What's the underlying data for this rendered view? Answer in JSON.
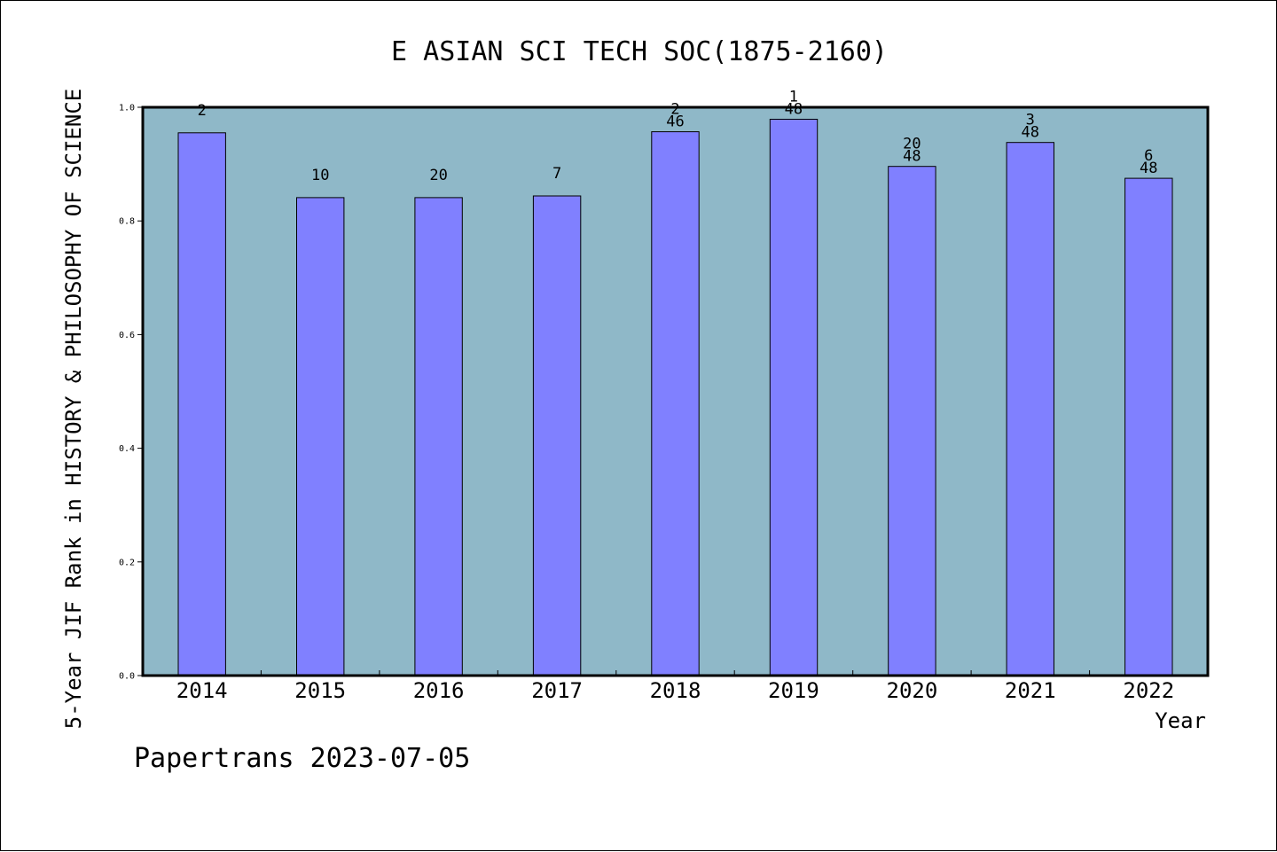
{
  "chart_data": {
    "type": "bar",
    "title": "E ASIAN SCI TECH SOC(1875-2160)",
    "xlabel": "Year",
    "ylabel": "5-Year JIF Rank in HISTORY & PHILOSOPHY OF SCIENCE",
    "footer": "Papertrans 2023-07-05",
    "categories": [
      "2014",
      "2015",
      "2016",
      "2017",
      "2018",
      "2019",
      "2020",
      "2021",
      "2022"
    ],
    "values": [
      0.955,
      0.841,
      0.841,
      0.844,
      0.957,
      0.979,
      0.896,
      0.938,
      0.875
    ],
    "annotations": [
      {
        "rank": "2",
        "total": ""
      },
      {
        "rank": "10",
        "total": ""
      },
      {
        "rank": "20",
        "total": ""
      },
      {
        "rank": "7",
        "total": ""
      },
      {
        "rank": "2",
        "total": "46"
      },
      {
        "rank": "1",
        "total": "48"
      },
      {
        "rank": "20",
        "total": "48"
      },
      {
        "rank": "3",
        "total": "48"
      },
      {
        "rank": "6",
        "total": "48"
      }
    ],
    "ylim": [
      0,
      1.0
    ],
    "yticks": [
      "0.0",
      "0.2",
      "0.4",
      "0.6",
      "0.8",
      "1.0"
    ],
    "grid": false,
    "legend": "none",
    "colors": {
      "plot_background": "#8fb8c8",
      "bar_fill": "#8080ff",
      "bar_stroke": "#000000",
      "text": "#000000"
    }
  }
}
